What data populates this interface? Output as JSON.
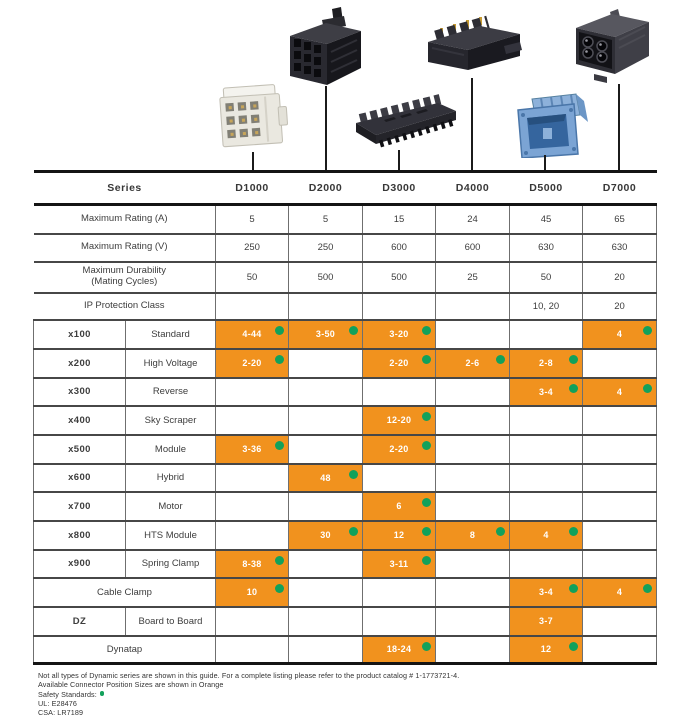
{
  "palette": {
    "orange": "#F1921E",
    "green": "#12A15B"
  },
  "connectors": [
    {
      "series": "D1000",
      "photo": "ivory-9-position-connector"
    },
    {
      "series": "D2000",
      "photo": "black-latched-connector"
    },
    {
      "series": "D3000",
      "photo": "black-inline-connector-strip"
    },
    {
      "series": "D4000",
      "photo": "black-header-gold-pins"
    },
    {
      "series": "D5000",
      "photo": "blue-panel-mount-connector"
    },
    {
      "series": "D7000",
      "photo": "dark-4-position-power-connector"
    }
  ],
  "table": {
    "series_header": "Series",
    "columns": [
      "D1000",
      "D2000",
      "D3000",
      "D4000",
      "D5000",
      "D7000"
    ],
    "spec_rows": [
      {
        "label": "Maximum Rating (A)",
        "values": [
          "5",
          "5",
          "15",
          "24",
          "45",
          "65"
        ]
      },
      {
        "label": "Maximum Rating (V)",
        "values": [
          "250",
          "250",
          "600",
          "600",
          "630",
          "630"
        ]
      },
      {
        "label": "Maximum Durability",
        "label2": "(Mating Cycles)",
        "values": [
          "50",
          "500",
          "500",
          "25",
          "50",
          "20"
        ]
      },
      {
        "label": "IP Protection Class",
        "values": [
          "",
          "",
          "",
          "",
          "10, 20",
          "20"
        ]
      }
    ],
    "type_rows": [
      {
        "code": "x100",
        "name": "Standard",
        "cells": [
          {
            "v": "4-44",
            "dot": true
          },
          {
            "v": "3-50",
            "dot": true
          },
          {
            "v": "3-20",
            "dot": true
          },
          null,
          null,
          {
            "v": "4",
            "dot": true
          }
        ]
      },
      {
        "code": "x200",
        "name": "High Voltage",
        "cells": [
          {
            "v": "2-20",
            "dot": true
          },
          null,
          {
            "v": "2-20",
            "dot": true
          },
          {
            "v": "2-6",
            "dot": true
          },
          {
            "v": "2-8",
            "dot": true
          },
          null
        ]
      },
      {
        "code": "x300",
        "name": "Reverse",
        "cells": [
          null,
          null,
          null,
          null,
          {
            "v": "3-4",
            "dot": true
          },
          {
            "v": "4",
            "dot": true
          }
        ]
      },
      {
        "code": "x400",
        "name": "Sky Scraper",
        "cells": [
          null,
          null,
          {
            "v": "12-20",
            "dot": true
          },
          null,
          null,
          null
        ]
      },
      {
        "code": "x500",
        "name": "Module",
        "cells": [
          {
            "v": "3-36",
            "dot": true
          },
          null,
          {
            "v": "2-20",
            "dot": true
          },
          null,
          null,
          null
        ]
      },
      {
        "code": "x600",
        "name": "Hybrid",
        "cells": [
          null,
          {
            "v": "48",
            "dot": true
          },
          null,
          null,
          null,
          null
        ]
      },
      {
        "code": "x700",
        "name": "Motor",
        "cells": [
          null,
          null,
          {
            "v": "6",
            "dot": true
          },
          null,
          null,
          null
        ]
      },
      {
        "code": "x800",
        "name": "HTS Module",
        "cells": [
          null,
          {
            "v": "30",
            "dot": true
          },
          {
            "v": "12",
            "dot": true
          },
          {
            "v": "8",
            "dot": true
          },
          {
            "v": "4",
            "dot": true
          },
          null
        ]
      },
      {
        "code": "x900",
        "name": "Spring Clamp",
        "cells": [
          {
            "v": "8-38",
            "dot": true
          },
          null,
          {
            "v": "3-11",
            "dot": true
          },
          null,
          null,
          null
        ]
      },
      {
        "span": true,
        "name": "Cable Clamp",
        "cells": [
          {
            "v": "10",
            "dot": true
          },
          null,
          null,
          null,
          {
            "v": "3-4",
            "dot": true
          },
          {
            "v": "4",
            "dot": true
          }
        ]
      },
      {
        "code": "DZ",
        "name": "Board to Board",
        "cells": [
          null,
          null,
          null,
          null,
          {
            "v": "3-7",
            "dot": false
          },
          null
        ]
      },
      {
        "span": true,
        "name": "Dynatap",
        "cells": [
          null,
          null,
          {
            "v": "18-24",
            "dot": true
          },
          null,
          {
            "v": "12",
            "dot": true
          },
          null
        ]
      }
    ]
  },
  "footnotes": {
    "line1": "Not all types of Dynamic series are shown in this guide. For a complete listing please refer to the product catalog # 1-1773721-4.",
    "line2": "Available Connector Position Sizes are shown in Orange",
    "safety": "Safety Standards:",
    "ul": "UL: E28476",
    "csa": "CSA: LR7189"
  }
}
